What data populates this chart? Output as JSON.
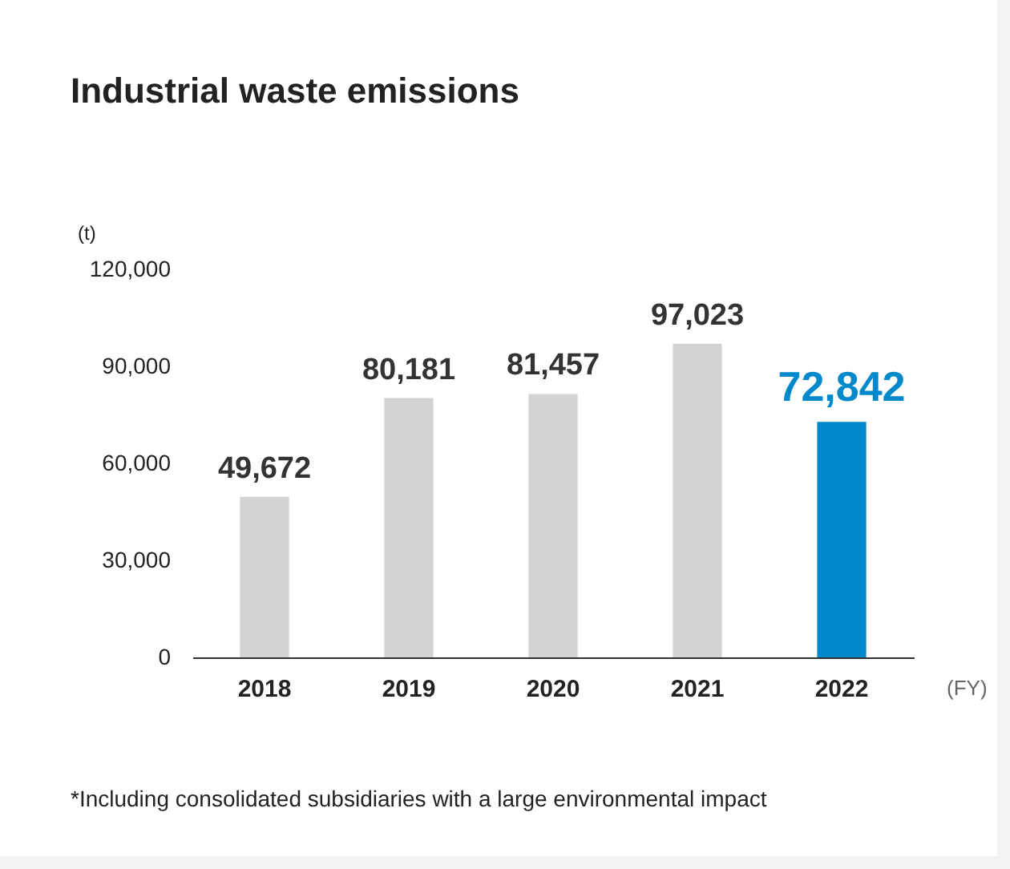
{
  "chart_data": {
    "type": "bar",
    "title": "Industrial waste emissions",
    "ylabel": "(t)",
    "xlabel": "(FY)",
    "categories": [
      "2018",
      "2019",
      "2020",
      "2021",
      "2022"
    ],
    "values": [
      49672,
      80181,
      81457,
      97023,
      72842
    ],
    "value_labels": [
      "49,672",
      "80,181",
      "81,457",
      "97,023",
      "72,842"
    ],
    "colors": [
      "#d3d3d3",
      "#d3d3d3",
      "#d3d3d3",
      "#d3d3d3",
      "#0088cc"
    ],
    "ylim": [
      0,
      120000
    ],
    "yticks": [
      0,
      {
        "value": 30000,
        "label": "30,000"
      },
      {
        "value": 60000,
        "label": "60,000"
      },
      {
        "value": 90000,
        "label": "90,000"
      },
      {
        "value": 120000,
        "label": "120,000"
      }
    ],
    "grid": false,
    "annotations": [
      "*Including consolidated subsidiaries with a large environmental impact"
    ]
  }
}
